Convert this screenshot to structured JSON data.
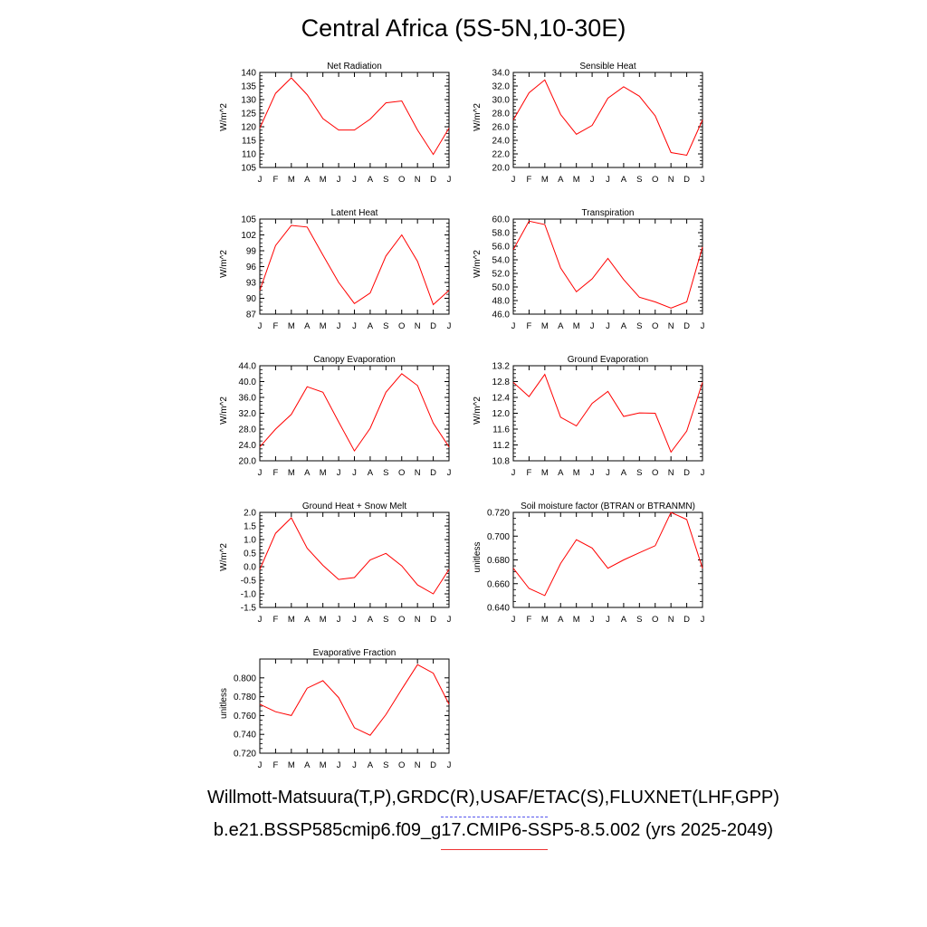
{
  "title": "Central Africa (5S-5N,10-30E)",
  "captions": {
    "obs": "Willmott-Matsuura(T,P),GRDC(R),USAF/ETAC(S),FLUXNET(LHF,GPP)",
    "model": "b.e21.BSSP585cmip6.f09_g17.CMIP6-SSP5-8.5.002 (yrs 2025-2049)"
  },
  "colors": {
    "line": "#ff0000",
    "obs_legend": "#5555ee",
    "model_legend": "#ee3333"
  },
  "chart_data": [
    {
      "type": "line",
      "title": "Net Radiation",
      "ylabel": "W/m^2",
      "categories": [
        "J",
        "F",
        "M",
        "A",
        "M",
        "J",
        "J",
        "A",
        "S",
        "O",
        "N",
        "D",
        "J"
      ],
      "values": [
        119.5,
        132.3,
        138.0,
        131.8,
        123.0,
        118.8,
        118.8,
        122.8,
        128.8,
        129.5,
        118.8,
        109.8,
        119.5
      ],
      "ylim": [
        105,
        140
      ],
      "yticks": [
        "105",
        "110",
        "115",
        "120",
        "125",
        "130",
        "135",
        "140"
      ]
    },
    {
      "type": "line",
      "title": "Sensible Heat",
      "ylabel": "W/m^2",
      "categories": [
        "J",
        "F",
        "M",
        "A",
        "M",
        "J",
        "J",
        "A",
        "S",
        "O",
        "N",
        "D",
        "J"
      ],
      "values": [
        27.0,
        31.0,
        32.9,
        27.8,
        24.9,
        26.2,
        30.2,
        31.9,
        30.5,
        27.6,
        22.2,
        21.8,
        27.0
      ],
      "ylim": [
        20,
        34
      ],
      "yticks": [
        "20.0",
        "22.0",
        "24.0",
        "26.0",
        "28.0",
        "30.0",
        "32.0",
        "34.0"
      ]
    },
    {
      "type": "line",
      "title": "Latent Heat",
      "ylabel": "W/m^2",
      "categories": [
        "J",
        "F",
        "M",
        "A",
        "M",
        "J",
        "J",
        "A",
        "S",
        "O",
        "N",
        "D",
        "J"
      ],
      "values": [
        91.5,
        100.0,
        103.8,
        103.5,
        98.2,
        93.0,
        89.0,
        91.0,
        98.0,
        102.0,
        97.0,
        88.8,
        91.5
      ],
      "ylim": [
        87,
        105
      ],
      "yticks": [
        "87",
        "90",
        "93",
        "96",
        "99",
        "102",
        "105"
      ]
    },
    {
      "type": "line",
      "title": "Transpiration",
      "ylabel": "W/m^2",
      "categories": [
        "J",
        "F",
        "M",
        "A",
        "M",
        "J",
        "J",
        "A",
        "S",
        "O",
        "N",
        "D",
        "J"
      ],
      "values": [
        55.5,
        59.7,
        59.2,
        52.8,
        49.3,
        51.2,
        54.2,
        51.1,
        48.5,
        47.8,
        46.9,
        47.8,
        55.9
      ],
      "ylim": [
        46,
        60
      ],
      "yticks": [
        "46.0",
        "48.0",
        "50.0",
        "52.0",
        "54.0",
        "56.0",
        "58.0",
        "60.0"
      ]
    },
    {
      "type": "line",
      "title": "Canopy Evaporation",
      "ylabel": "W/m^2",
      "categories": [
        "J",
        "F",
        "M",
        "A",
        "M",
        "J",
        "J",
        "A",
        "S",
        "O",
        "N",
        "D",
        "J"
      ],
      "values": [
        23.5,
        28.0,
        31.7,
        38.7,
        37.3,
        29.8,
        22.5,
        28.2,
        37.3,
        42.0,
        39.0,
        29.5,
        23.5
      ],
      "ylim": [
        20,
        44
      ],
      "yticks": [
        "20.0",
        "24.0",
        "28.0",
        "32.0",
        "36.0",
        "40.0",
        "44.0"
      ]
    },
    {
      "type": "line",
      "title": "Ground Evaporation",
      "ylabel": "W/m^2",
      "categories": [
        "J",
        "F",
        "M",
        "A",
        "M",
        "J",
        "J",
        "A",
        "S",
        "O",
        "N",
        "D",
        "J"
      ],
      "values": [
        12.78,
        12.42,
        12.98,
        11.9,
        11.68,
        12.25,
        12.55,
        11.92,
        12.01,
        12.0,
        11.02,
        11.55,
        12.78
      ],
      "ylim": [
        10.8,
        13.2
      ],
      "yticks": [
        "10.8",
        "11.2",
        "11.6",
        "12.0",
        "12.4",
        "12.8",
        "13.2"
      ]
    },
    {
      "type": "line",
      "title": "Ground Heat + Snow Melt",
      "ylabel": "W/m^2",
      "categories": [
        "J",
        "F",
        "M",
        "A",
        "M",
        "J",
        "J",
        "A",
        "S",
        "O",
        "N",
        "D",
        "J"
      ],
      "values": [
        -0.1,
        1.23,
        1.8,
        0.68,
        0.05,
        -0.47,
        -0.4,
        0.25,
        0.49,
        0.03,
        -0.67,
        -1.0,
        -0.1
      ],
      "ylim": [
        -1.5,
        2.0
      ],
      "yticks": [
        "-1.5",
        "-1.0",
        "-0.5",
        "0.0",
        "0.5",
        "1.0",
        "1.5",
        "2.0"
      ]
    },
    {
      "type": "line",
      "title": "Soil moisture factor (BTRAN or BTRANMN)",
      "ylabel": "unitless",
      "categories": [
        "J",
        "F",
        "M",
        "A",
        "M",
        "J",
        "J",
        "A",
        "S",
        "O",
        "N",
        "D",
        "J"
      ],
      "values": [
        0.673,
        0.656,
        0.65,
        0.677,
        0.697,
        0.69,
        0.673,
        0.68,
        0.686,
        0.692,
        0.72,
        0.714,
        0.673
      ],
      "ylim": [
        0.64,
        0.72
      ],
      "yticks": [
        "0.640",
        "0.660",
        "0.680",
        "0.700",
        "0.720"
      ]
    },
    {
      "type": "line",
      "title": "Evaporative Fraction",
      "ylabel": "unitless",
      "categories": [
        "J",
        "F",
        "M",
        "A",
        "M",
        "J",
        "J",
        "A",
        "S",
        "O",
        "N",
        "D",
        "J"
      ],
      "values": [
        0.772,
        0.764,
        0.76,
        0.789,
        0.797,
        0.779,
        0.747,
        0.739,
        0.761,
        0.788,
        0.814,
        0.805,
        0.772
      ],
      "ylim": [
        0.72,
        0.82
      ],
      "yticks": [
        "0.720",
        "0.740",
        "0.760",
        "0.780",
        "0.800"
      ]
    }
  ]
}
